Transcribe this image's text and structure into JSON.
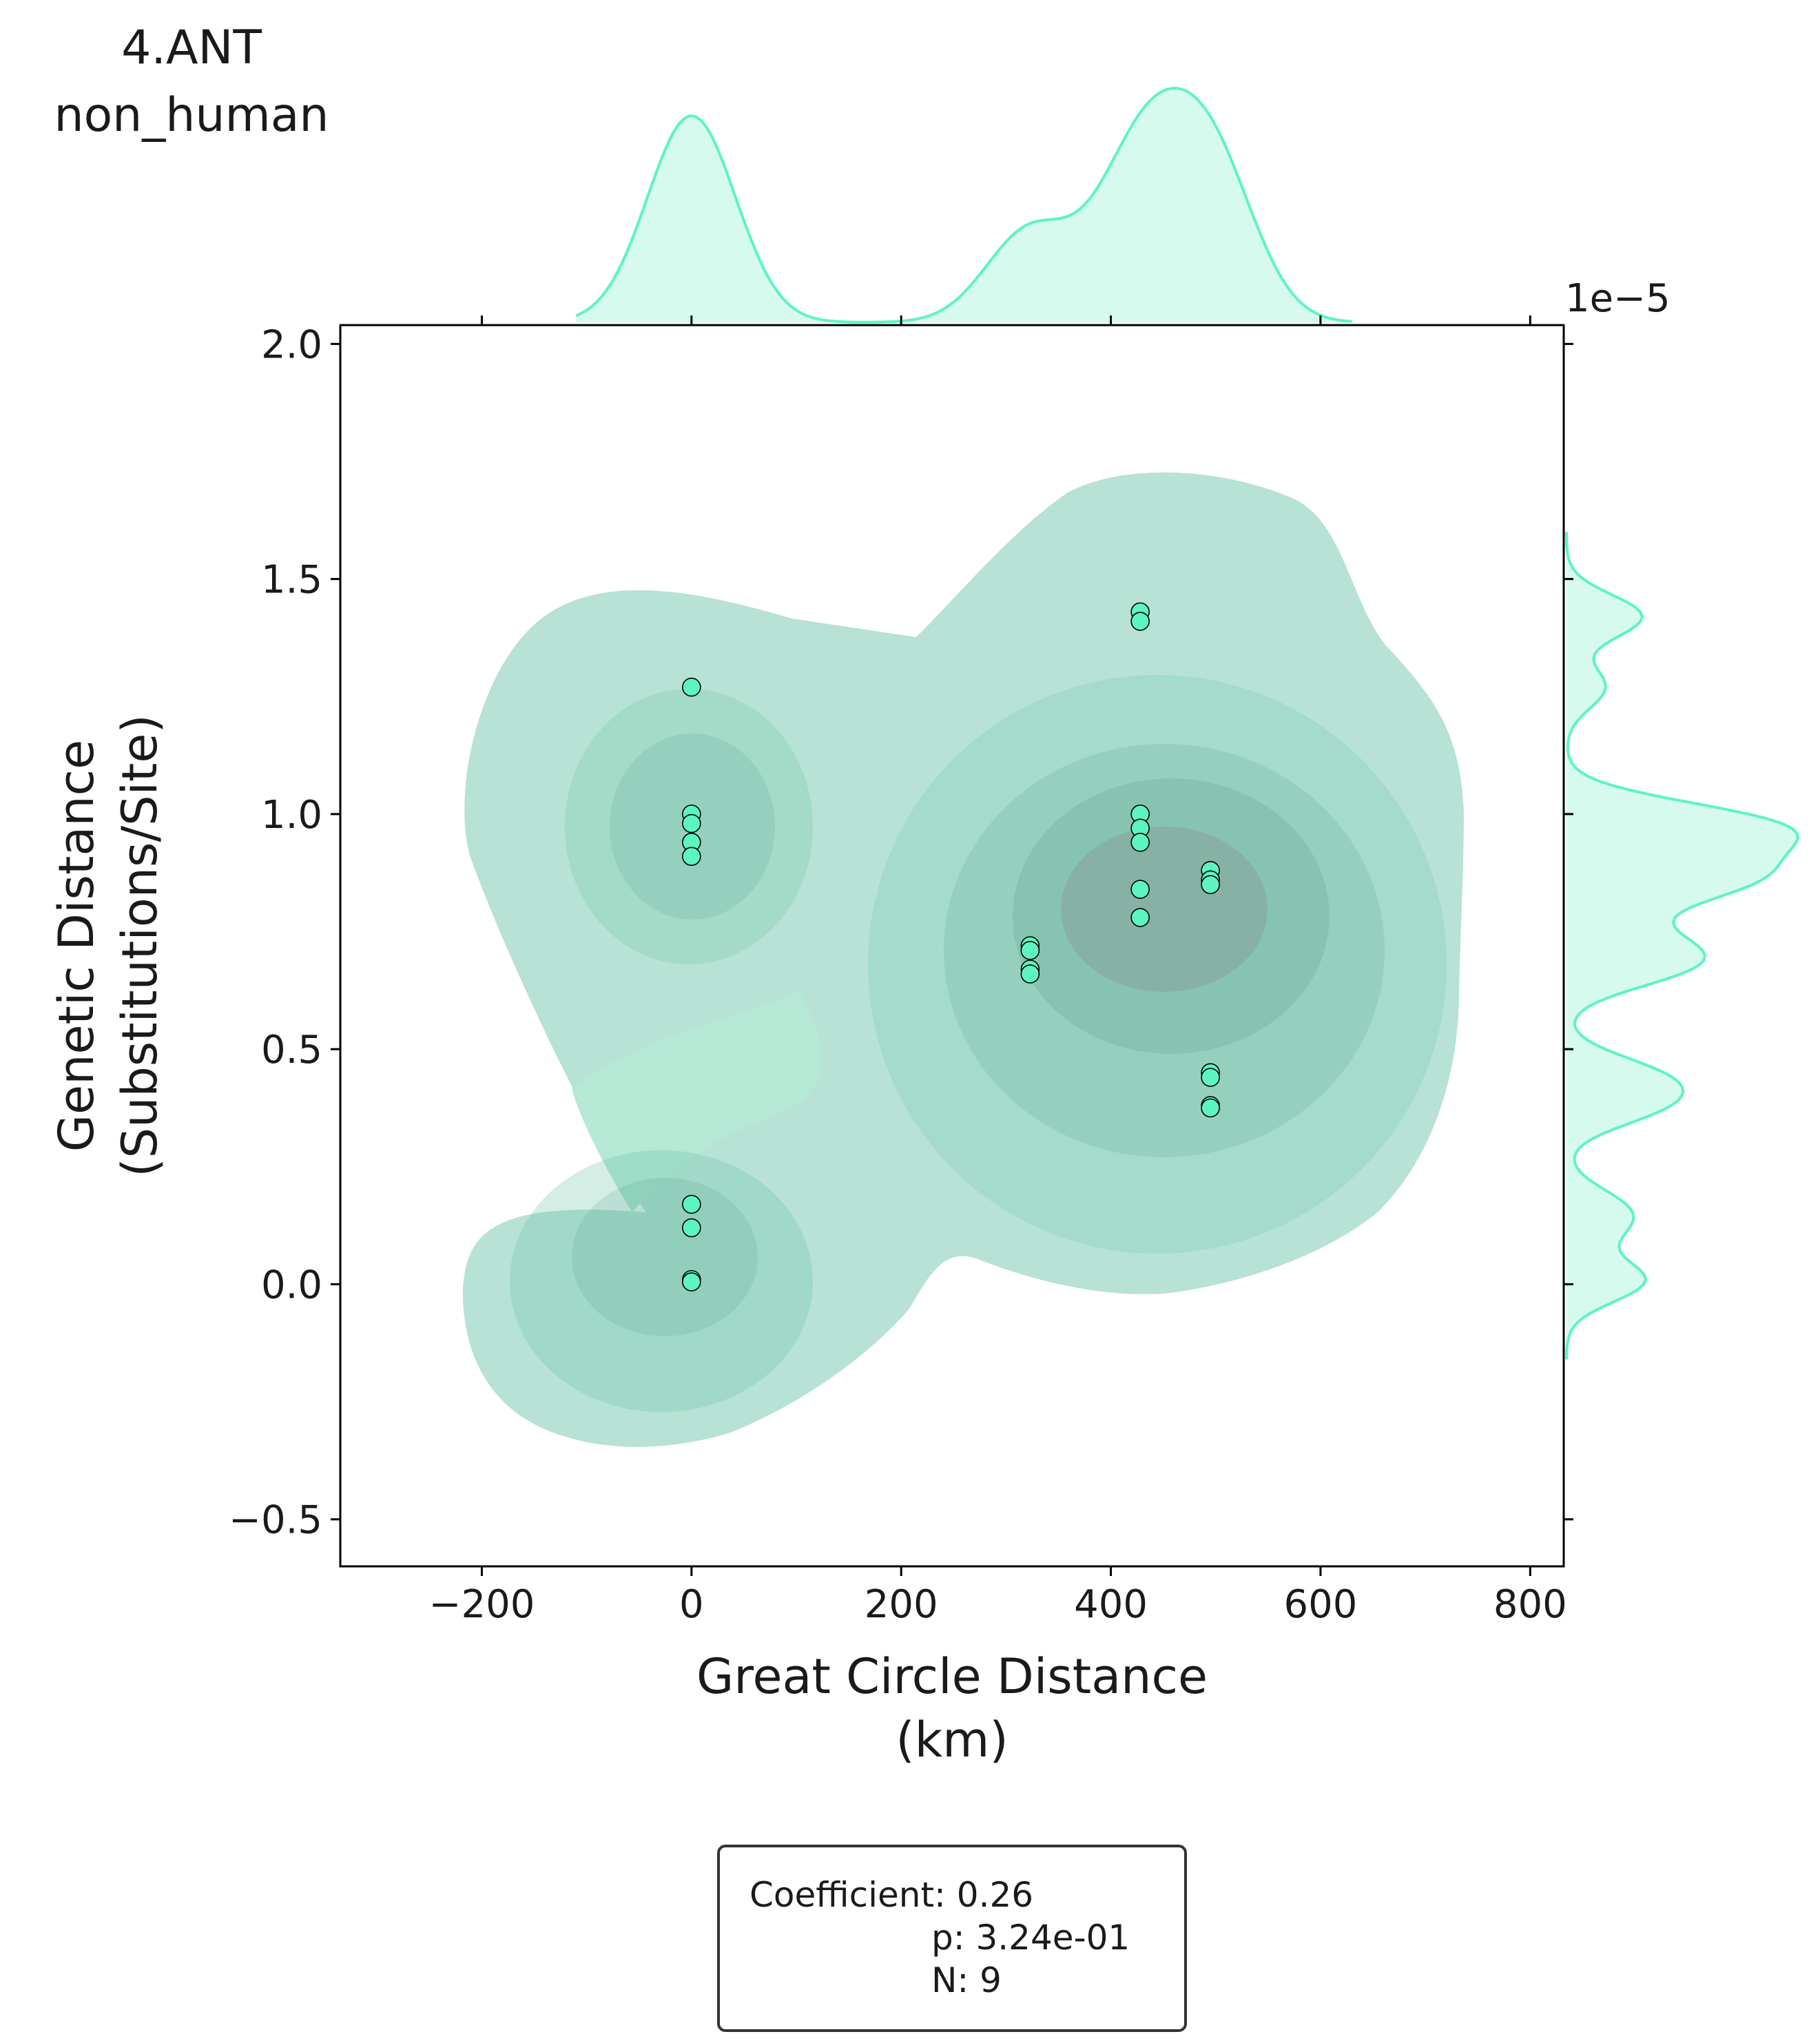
{
  "chart_data": {
    "type": "scatter",
    "title_lines": [
      "4.ANT",
      "non_human"
    ],
    "xlabel_lines": [
      "Great Circle Distance",
      "(km)"
    ],
    "ylabel_lines": [
      "Genetic Distance",
      "(Substitutions/Site)"
    ],
    "y_offset_text": "1e−5",
    "xlim": [
      -335,
      832
    ],
    "ylim": [
      -0.6,
      2.04
    ],
    "y_scale": 1e-05,
    "x_ticks": [
      -200,
      0,
      200,
      400,
      600,
      800
    ],
    "x_tick_labels": [
      "−200",
      "0",
      "200",
      "400",
      "600",
      "800"
    ],
    "y_ticks": [
      -0.5,
      0.0,
      0.5,
      1.0,
      1.5,
      2.0
    ],
    "y_tick_labels": [
      "−0.5",
      "0.0",
      "0.5",
      "1.0",
      "1.5",
      "2.0"
    ],
    "grid": false,
    "color": "#5cf5c0",
    "kde_fill_color": "#66c2a5",
    "marginal_fill_color": "#d6faee",
    "points": [
      {
        "x": 0,
        "y": 1.27
      },
      {
        "x": 0,
        "y": 1.0
      },
      {
        "x": 0,
        "y": 0.98
      },
      {
        "x": 0,
        "y": 0.94
      },
      {
        "x": 0,
        "y": 0.91
      },
      {
        "x": 0,
        "y": 0.17
      },
      {
        "x": 0,
        "y": 0.12
      },
      {
        "x": 0,
        "y": 0.01
      },
      {
        "x": 0,
        "y": 0.005
      },
      {
        "x": 323,
        "y": 0.72
      },
      {
        "x": 323,
        "y": 0.71
      },
      {
        "x": 323,
        "y": 0.67
      },
      {
        "x": 323,
        "y": 0.66
      },
      {
        "x": 428,
        "y": 1.43
      },
      {
        "x": 428,
        "y": 1.41
      },
      {
        "x": 428,
        "y": 1.0
      },
      {
        "x": 428,
        "y": 0.97
      },
      {
        "x": 428,
        "y": 0.94
      },
      {
        "x": 428,
        "y": 0.84
      },
      {
        "x": 428,
        "y": 0.78
      },
      {
        "x": 495,
        "y": 0.88
      },
      {
        "x": 495,
        "y": 0.86
      },
      {
        "x": 495,
        "y": 0.85
      },
      {
        "x": 495,
        "y": 0.45
      },
      {
        "x": 495,
        "y": 0.44
      },
      {
        "x": 495,
        "y": 0.38
      },
      {
        "x": 495,
        "y": 0.375
      }
    ],
    "stats": {
      "line1": "Coefficient: 0.26",
      "line2": "p: 3.24e-01",
      "line3": "N: 9"
    }
  }
}
